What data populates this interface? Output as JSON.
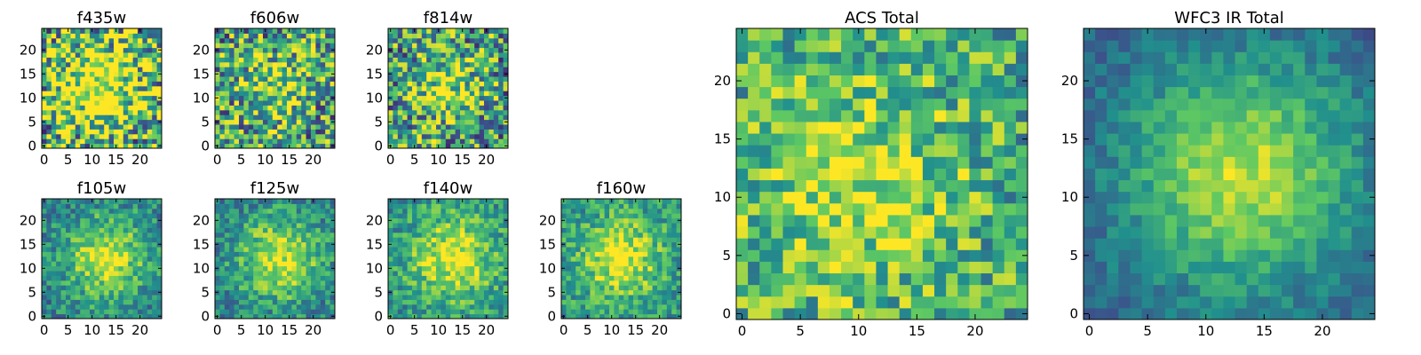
{
  "figure": {
    "colormap": "viridis",
    "colormap_stops": [
      "#440154",
      "#3b528b",
      "#21908d",
      "#5dc863",
      "#fde725"
    ]
  },
  "chart_data": [
    {
      "type": "heatmap",
      "title": "f435w",
      "xlim": [
        -0.5,
        24.5
      ],
      "ylim": [
        -0.5,
        24.5
      ],
      "xticks": [
        "0",
        "5",
        "10",
        "15",
        "20"
      ],
      "yticks": [
        "0",
        "5",
        "10",
        "15",
        "20"
      ],
      "grid_size": 25,
      "profile": {
        "center": [
          12,
          12
        ],
        "peak": 0.55,
        "background": 0.62,
        "sigma": 6.0,
        "noise": 0.55
      }
    },
    {
      "type": "heatmap",
      "title": "f606w",
      "xlim": [
        -0.5,
        24.5
      ],
      "ylim": [
        -0.5,
        24.5
      ],
      "xticks": [
        "0",
        "5",
        "10",
        "15",
        "20"
      ],
      "yticks": [
        "0",
        "5",
        "10",
        "15",
        "20"
      ],
      "grid_size": 25,
      "profile": {
        "center": [
          12,
          12
        ],
        "peak": 0.35,
        "background": 0.55,
        "sigma": 5.0,
        "noise": 0.45
      }
    },
    {
      "type": "heatmap",
      "title": "f814w",
      "xlim": [
        -0.5,
        24.5
      ],
      "ylim": [
        -0.5,
        24.5
      ],
      "xticks": [
        "0",
        "5",
        "10",
        "15",
        "20"
      ],
      "yticks": [
        "0",
        "5",
        "10",
        "15",
        "20"
      ],
      "grid_size": 25,
      "profile": {
        "center": [
          12,
          12
        ],
        "peak": 0.35,
        "background": 0.55,
        "sigma": 5.0,
        "noise": 0.45
      }
    },
    {
      "type": "heatmap",
      "title": "f105w",
      "xlim": [
        -0.5,
        24.5
      ],
      "ylim": [
        -0.5,
        24.5
      ],
      "xticks": [
        "0",
        "5",
        "10",
        "15",
        "20"
      ],
      "yticks": [
        "0",
        "5",
        "10",
        "15",
        "20"
      ],
      "grid_size": 25,
      "profile": {
        "center": [
          13,
          12
        ],
        "peak": 0.5,
        "background": 0.42,
        "sigma": 6.5,
        "noise": 0.22
      }
    },
    {
      "type": "heatmap",
      "title": "f125w",
      "xlim": [
        -0.5,
        24.5
      ],
      "ylim": [
        -0.5,
        24.5
      ],
      "xticks": [
        "0",
        "5",
        "10",
        "15",
        "20"
      ],
      "yticks": [
        "0",
        "5",
        "10",
        "15",
        "20"
      ],
      "grid_size": 25,
      "profile": {
        "center": [
          13,
          12
        ],
        "peak": 0.5,
        "background": 0.42,
        "sigma": 6.5,
        "noise": 0.22
      }
    },
    {
      "type": "heatmap",
      "title": "f140w",
      "xlim": [
        -0.5,
        24.5
      ],
      "ylim": [
        -0.5,
        24.5
      ],
      "xticks": [
        "0",
        "5",
        "10",
        "15",
        "20"
      ],
      "yticks": [
        "0",
        "5",
        "10",
        "15",
        "20"
      ],
      "grid_size": 25,
      "profile": {
        "center": [
          13,
          12
        ],
        "peak": 0.45,
        "background": 0.5,
        "sigma": 6.5,
        "noise": 0.22
      }
    },
    {
      "type": "heatmap",
      "title": "f160w",
      "xlim": [
        -0.5,
        24.5
      ],
      "ylim": [
        -0.5,
        24.5
      ],
      "xticks": [
        "0",
        "5",
        "10",
        "15",
        "20"
      ],
      "yticks": [
        "0",
        "5",
        "10",
        "15",
        "20"
      ],
      "grid_size": 25,
      "profile": {
        "center": [
          12,
          12
        ],
        "peak": 0.45,
        "background": 0.5,
        "sigma": 6.5,
        "noise": 0.22
      }
    },
    {
      "type": "heatmap",
      "title": "ACS Total",
      "xlim": [
        -0.5,
        24.5
      ],
      "ylim": [
        -0.5,
        24.5
      ],
      "xticks": [
        "0",
        "5",
        "10",
        "15",
        "20"
      ],
      "yticks": [
        "0",
        "5",
        "10",
        "15",
        "20"
      ],
      "grid_size": 25,
      "profile": {
        "center": [
          10,
          11
        ],
        "peak": 0.3,
        "background": 0.62,
        "sigma": 6.0,
        "noise": 0.3
      }
    },
    {
      "type": "heatmap",
      "title": "WFC3 IR Total",
      "xlim": [
        -0.5,
        24.5
      ],
      "ylim": [
        -0.5,
        24.5
      ],
      "xticks": [
        "0",
        "5",
        "10",
        "15",
        "20"
      ],
      "yticks": [
        "0",
        "5",
        "10",
        "15",
        "20"
      ],
      "grid_size": 25,
      "profile": {
        "center": [
          13,
          12
        ],
        "peak": 0.6,
        "background": 0.3,
        "sigma": 7.0,
        "noise": 0.12
      }
    }
  ]
}
